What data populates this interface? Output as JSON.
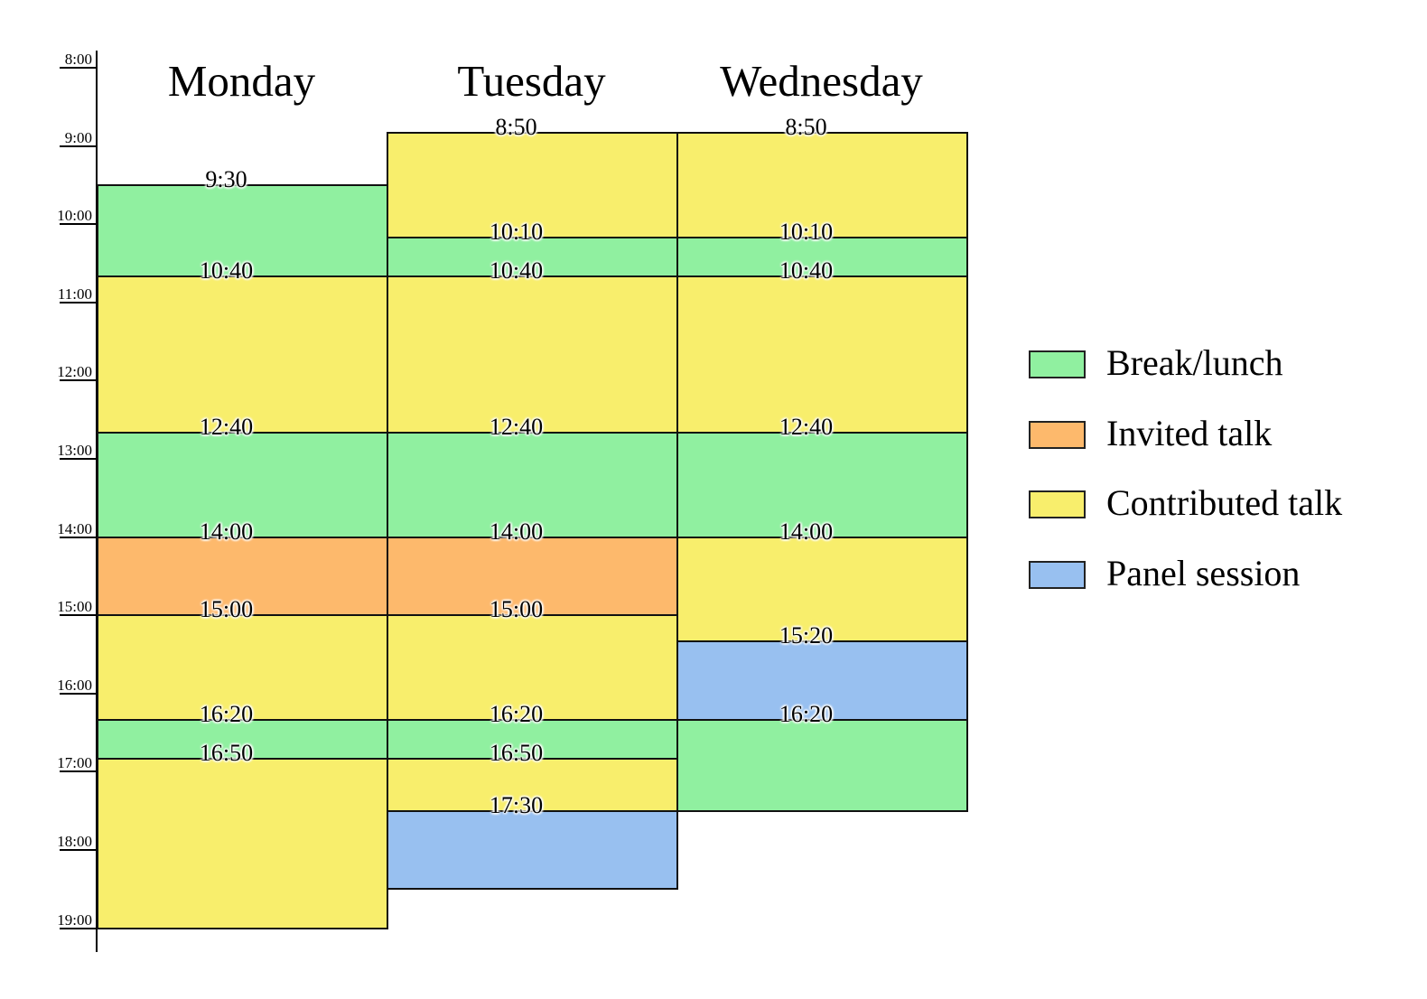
{
  "chart_data": {
    "type": "timetable",
    "title": "",
    "y_axis": {
      "label": "",
      "ticks": [
        "8:00",
        "9:00",
        "10:00",
        "11:00",
        "12:00",
        "13:00",
        "14:00",
        "15:00",
        "16:00",
        "17:00",
        "18:00",
        "19:00"
      ],
      "range": [
        "8:00",
        "19:00"
      ]
    },
    "categories": [
      "Monday",
      "Tuesday",
      "Wednesday"
    ],
    "legend": [
      {
        "key": "break",
        "label": "Break/lunch",
        "color": "#90f0a0"
      },
      {
        "key": "invited",
        "label": "Invited talk",
        "color": "#fdb96c"
      },
      {
        "key": "contributed",
        "label": "Contributed talk",
        "color": "#f8ee6c"
      },
      {
        "key": "panel",
        "label": "Panel session",
        "color": "#98c0f0"
      }
    ],
    "series": [
      {
        "day": "Monday",
        "sessions": [
          {
            "start": "9:30",
            "end": "10:40",
            "type": "break"
          },
          {
            "start": "10:40",
            "end": "12:40",
            "type": "contributed"
          },
          {
            "start": "12:40",
            "end": "14:00",
            "type": "break"
          },
          {
            "start": "14:00",
            "end": "15:00",
            "type": "invited"
          },
          {
            "start": "15:00",
            "end": "16:20",
            "type": "contributed"
          },
          {
            "start": "16:20",
            "end": "16:50",
            "type": "break"
          },
          {
            "start": "16:50",
            "end": "19:00",
            "type": "contributed"
          }
        ],
        "labels": [
          "9:30",
          "10:40",
          "12:40",
          "14:00",
          "15:00",
          "16:20",
          "16:50"
        ]
      },
      {
        "day": "Tuesday",
        "sessions": [
          {
            "start": "8:50",
            "end": "10:10",
            "type": "contributed"
          },
          {
            "start": "10:10",
            "end": "10:40",
            "type": "break"
          },
          {
            "start": "10:40",
            "end": "12:40",
            "type": "contributed"
          },
          {
            "start": "12:40",
            "end": "14:00",
            "type": "break"
          },
          {
            "start": "14:00",
            "end": "15:00",
            "type": "invited"
          },
          {
            "start": "15:00",
            "end": "16:20",
            "type": "contributed"
          },
          {
            "start": "16:20",
            "end": "16:50",
            "type": "break"
          },
          {
            "start": "16:50",
            "end": "17:30",
            "type": "contributed"
          },
          {
            "start": "17:30",
            "end": "18:30",
            "type": "panel"
          }
        ],
        "labels": [
          "8:50",
          "10:10",
          "10:40",
          "12:40",
          "14:00",
          "15:00",
          "16:20",
          "16:50",
          "17:30"
        ]
      },
      {
        "day": "Wednesday",
        "sessions": [
          {
            "start": "8:50",
            "end": "10:10",
            "type": "contributed"
          },
          {
            "start": "10:10",
            "end": "10:40",
            "type": "break"
          },
          {
            "start": "10:40",
            "end": "12:40",
            "type": "contributed"
          },
          {
            "start": "12:40",
            "end": "14:00",
            "type": "break"
          },
          {
            "start": "14:00",
            "end": "15:20",
            "type": "contributed"
          },
          {
            "start": "15:20",
            "end": "16:20",
            "type": "panel"
          },
          {
            "start": "16:20",
            "end": "17:30",
            "type": "break"
          }
        ],
        "labels": [
          "8:50",
          "10:10",
          "10:40",
          "12:40",
          "14:00",
          "15:20",
          "16:20"
        ]
      }
    ],
    "layout": {
      "grid": false,
      "legend_position": "right"
    }
  }
}
